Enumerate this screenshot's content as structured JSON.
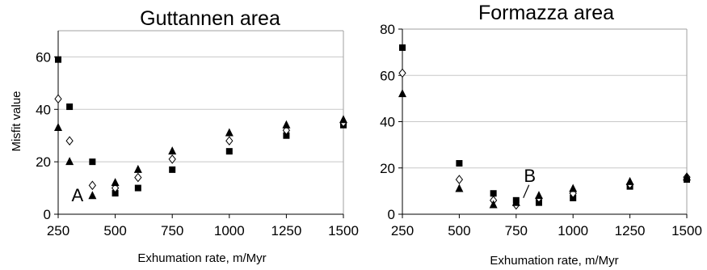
{
  "chart_data": [
    {
      "type": "scatter",
      "title": "Guttannen area",
      "xlabel": "Exhumation rate, m/Myr",
      "ylabel": "Misfit value",
      "xlim": [
        250,
        1500
      ],
      "ylim": [
        0,
        70
      ],
      "xticks": [
        250,
        500,
        750,
        1000,
        1250,
        1500
      ],
      "yticks": [
        0,
        20,
        40,
        60
      ],
      "grid": "horizontal",
      "series": [
        {
          "marker": "square",
          "x": [
            250,
            300,
            400,
            500,
            600,
            750,
            1000,
            1250,
            1500
          ],
          "y": [
            59,
            41,
            20,
            8,
            10,
            17,
            24,
            30,
            34
          ]
        },
        {
          "marker": "diamond",
          "x": [
            250,
            300,
            400,
            500,
            600,
            750,
            1000,
            1250,
            1500
          ],
          "y": [
            44,
            28,
            11,
            10,
            14,
            21,
            28,
            32,
            35
          ]
        },
        {
          "marker": "triangle",
          "x": [
            250,
            300,
            400,
            500,
            600,
            750,
            1000,
            1250,
            1500
          ],
          "y": [
            33,
            20,
            7,
            12,
            17,
            24,
            31,
            34,
            36
          ]
        }
      ],
      "annotations": [
        {
          "text": "A",
          "x": 370,
          "y": 5
        }
      ]
    },
    {
      "type": "scatter",
      "title": "Formazza area",
      "xlabel": "Exhumation rate, m/Myr",
      "ylabel": "",
      "xlim": [
        250,
        1500
      ],
      "ylim": [
        0,
        80
      ],
      "xticks": [
        250,
        500,
        750,
        1000,
        1250,
        1500
      ],
      "yticks": [
        0,
        20,
        40,
        60,
        80
      ],
      "grid": "horizontal",
      "series": [
        {
          "marker": "square",
          "x": [
            250,
            500,
            650,
            750,
            850,
            1000,
            1250,
            1500
          ],
          "y": [
            72,
            22,
            9,
            6,
            5,
            7,
            12,
            15
          ]
        },
        {
          "marker": "diamond",
          "x": [
            250,
            500,
            650,
            750,
            850,
            1000,
            1250,
            1500
          ],
          "y": [
            61,
            15,
            6,
            4,
            7,
            9,
            13,
            16
          ]
        },
        {
          "marker": "triangle",
          "x": [
            250,
            500,
            650,
            750,
            850,
            1000,
            1250,
            1500
          ],
          "y": [
            52,
            11,
            4,
            5,
            8,
            11,
            14,
            16
          ]
        }
      ],
      "annotations": [
        {
          "text": "B",
          "x": 810,
          "y": 13
        }
      ]
    }
  ],
  "colors": {
    "marker_fill": "#000000",
    "diamond_fill": "#ffffff",
    "grid": "#c8c8c8",
    "frame": "#a0a0a0"
  }
}
